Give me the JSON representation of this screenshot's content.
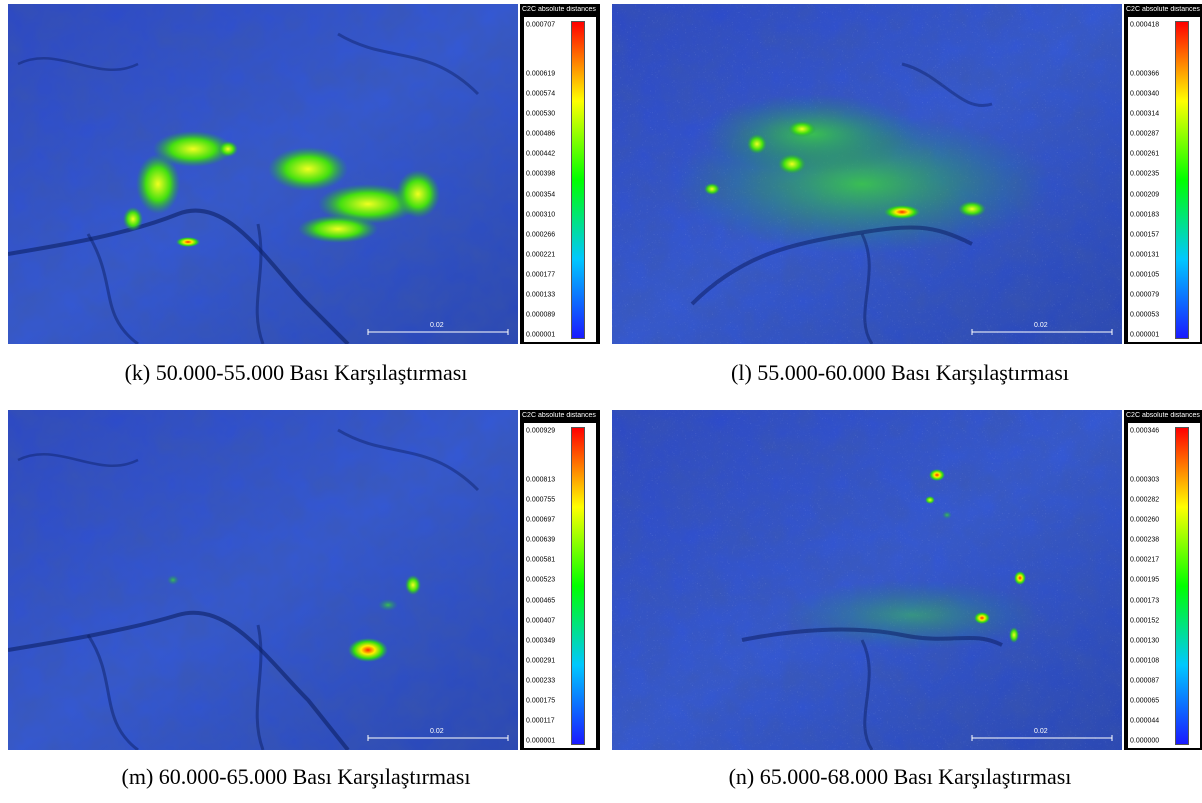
{
  "legend_title": "C2C absolute distances",
  "scale_label": "0.02",
  "colors": {
    "colormap": [
      "#1a1aff",
      "#00c0ff",
      "#00ff00",
      "#ffff00",
      "#ff0000"
    ],
    "surface_base": "#2a4fd0"
  },
  "panels": [
    {
      "id": "k",
      "caption": "(k) 50.000-55.000 Bası Karşılaştırması",
      "ticks": [
        "0.000707",
        "0.000619",
        "0.000574",
        "0.000530",
        "0.000486",
        "0.000442",
        "0.000398",
        "0.000354",
        "0.000310",
        "0.000266",
        "0.000221",
        "0.000177",
        "0.000133",
        "0.000089",
        "0.000001"
      ]
    },
    {
      "id": "l",
      "caption": "(l)  55.000-60.000 Bası Karşılaştırması",
      "ticks": [
        "0.000418",
        "0.000366",
        "0.000340",
        "0.000314",
        "0.000287",
        "0.000261",
        "0.000235",
        "0.000209",
        "0.000183",
        "0.000157",
        "0.000131",
        "0.000105",
        "0.000079",
        "0.000053",
        "0.000001"
      ]
    },
    {
      "id": "m",
      "caption": "(m) 60.000-65.000 Bası Karşılaştırması",
      "ticks": [
        "0.000929",
        "0.000813",
        "0.000755",
        "0.000697",
        "0.000639",
        "0.000581",
        "0.000523",
        "0.000465",
        "0.000407",
        "0.000349",
        "0.000291",
        "0.000233",
        "0.000175",
        "0.000117",
        "0.000001"
      ]
    },
    {
      "id": "n",
      "caption": "(n) 65.000-68.000 Bası Karşılaştırması",
      "ticks": [
        "0.000346",
        "0.000303",
        "0.000282",
        "0.000260",
        "0.000238",
        "0.000217",
        "0.000195",
        "0.000173",
        "0.000152",
        "0.000130",
        "0.000108",
        "0.000087",
        "0.000065",
        "0.000044",
        "0.000000"
      ]
    }
  ]
}
